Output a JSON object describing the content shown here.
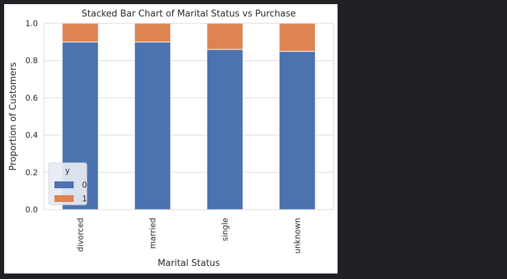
{
  "chart_data": {
    "type": "bar",
    "stacked": true,
    "title": "Stacked Bar Chart of Marital Status vs Purchase",
    "xlabel": "Marital Status",
    "ylabel": "Proportion of Customers",
    "categories": [
      "divorced",
      "married",
      "single",
      "unknown"
    ],
    "series": [
      {
        "name": "0",
        "values": [
          0.9,
          0.9,
          0.86,
          0.85
        ],
        "color": "#4c72b0"
      },
      {
        "name": "1",
        "values": [
          0.1,
          0.1,
          0.14,
          0.15
        ],
        "color": "#dd8452"
      }
    ],
    "ylim": [
      0.0,
      1.0
    ],
    "yticks": [
      "0.0",
      "0.2",
      "0.4",
      "0.6",
      "0.8",
      "1.0"
    ],
    "grid": true,
    "legend": {
      "title": "y",
      "placement": "lower-left"
    }
  }
}
